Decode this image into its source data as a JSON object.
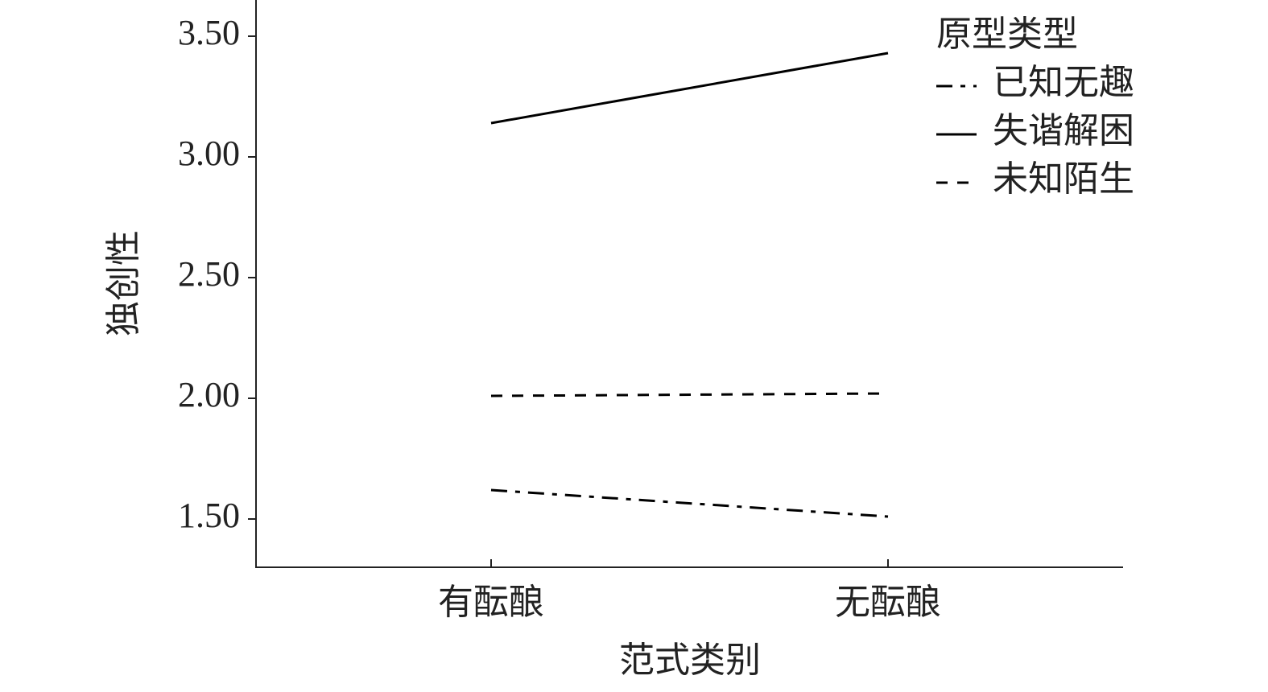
{
  "chart_data": {
    "type": "line",
    "x_label": "范式类别",
    "y_label": "独创性",
    "categories": [
      "有酝酿",
      "无酝酿"
    ],
    "legend_title": "原型类型",
    "legend_position": "upper right",
    "series": [
      {
        "name": "已知无趣",
        "color": "#000000",
        "dash": "dashdot",
        "values": [
          1.62,
          1.51
        ]
      },
      {
        "name": "失谐解困",
        "color": "#000000",
        "dash": "solid",
        "values": [
          3.14,
          3.43
        ]
      },
      {
        "name": "未知陌生",
        "color": "#000000",
        "dash": "dashed",
        "values": [
          2.01,
          2.02
        ]
      }
    ],
    "ylim": [
      1.3,
      3.65
    ],
    "yticks": [
      {
        "value": 1.5,
        "label": "1.50"
      },
      {
        "value": 2.0,
        "label": "2.00"
      },
      {
        "value": 2.5,
        "label": "2.50"
      },
      {
        "value": 3.0,
        "label": "3.00"
      },
      {
        "value": 3.5,
        "label": "3.50"
      }
    ],
    "grid": false
  }
}
